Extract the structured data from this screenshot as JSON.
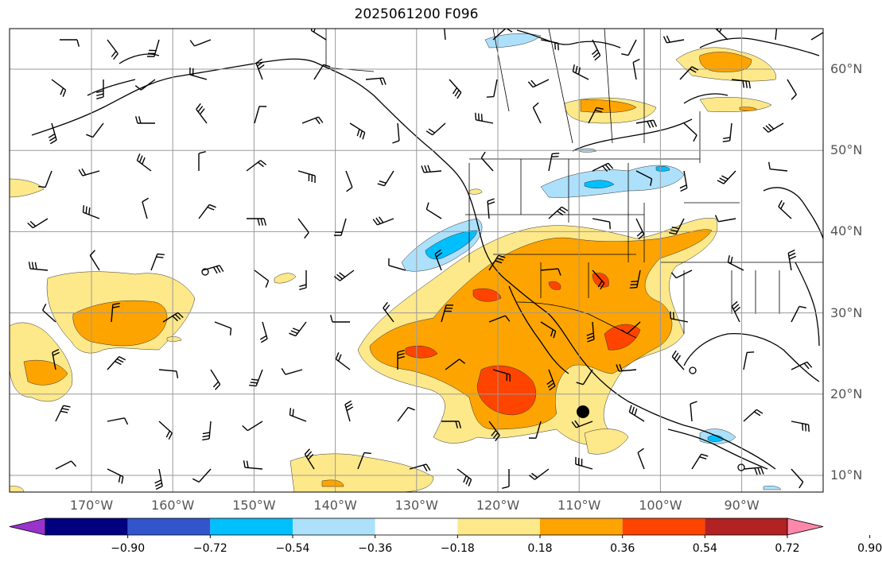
{
  "title": "2025061200 F096",
  "map": {
    "lat_labels": [
      "60°N",
      "50°N",
      "40°N",
      "30°N",
      "20°N",
      "10°N"
    ],
    "lon_labels": [
      "170°W",
      "160°W",
      "150°W",
      "140°W",
      "130°W",
      "120°W",
      "110°W",
      "100°W",
      "90°W"
    ],
    "shading_colors": {
      "positive_light": "#fde88a",
      "positive_mid": "#fda400",
      "positive_strong": "#ff4400",
      "negative_light": "#ade0fb",
      "negative_mid": "#00bfff"
    }
  },
  "colorbar": {
    "ticks": [
      "−0.90",
      "−0.72",
      "−0.54",
      "−0.36",
      "−0.18",
      "0.18",
      "0.36",
      "0.54",
      "0.72",
      "0.90"
    ],
    "colors": [
      "#9933cc",
      "#000080",
      "#3355cc",
      "#00bfff",
      "#ade0fb",
      "#ffffff",
      "#fde88a",
      "#fda400",
      "#ff4400",
      "#b22222",
      "#ff88aa"
    ]
  }
}
